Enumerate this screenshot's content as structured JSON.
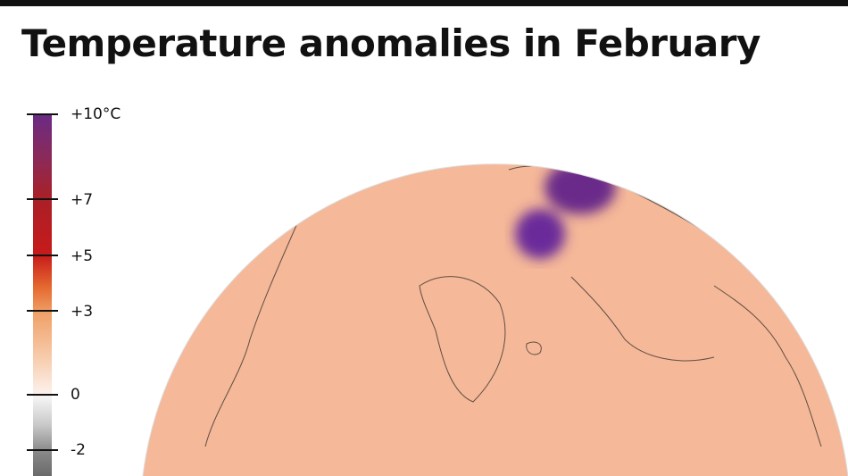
{
  "title": "Temperature anomalies in February",
  "legend": {
    "ticks": [
      {
        "label": "+10°C",
        "value": 10
      },
      {
        "label": "+7",
        "value": 7
      },
      {
        "label": "+5",
        "value": 5
      },
      {
        "label": "+3",
        "value": 3
      },
      {
        "label": "0",
        "value": 0
      },
      {
        "label": "-2",
        "value": -2
      }
    ],
    "colors": {
      "max": "#6a2a86",
      "high": "#c81a1a",
      "mid": "#f0a068",
      "zero": "#f4f4f4",
      "min": "#6a6a6a"
    }
  }
}
